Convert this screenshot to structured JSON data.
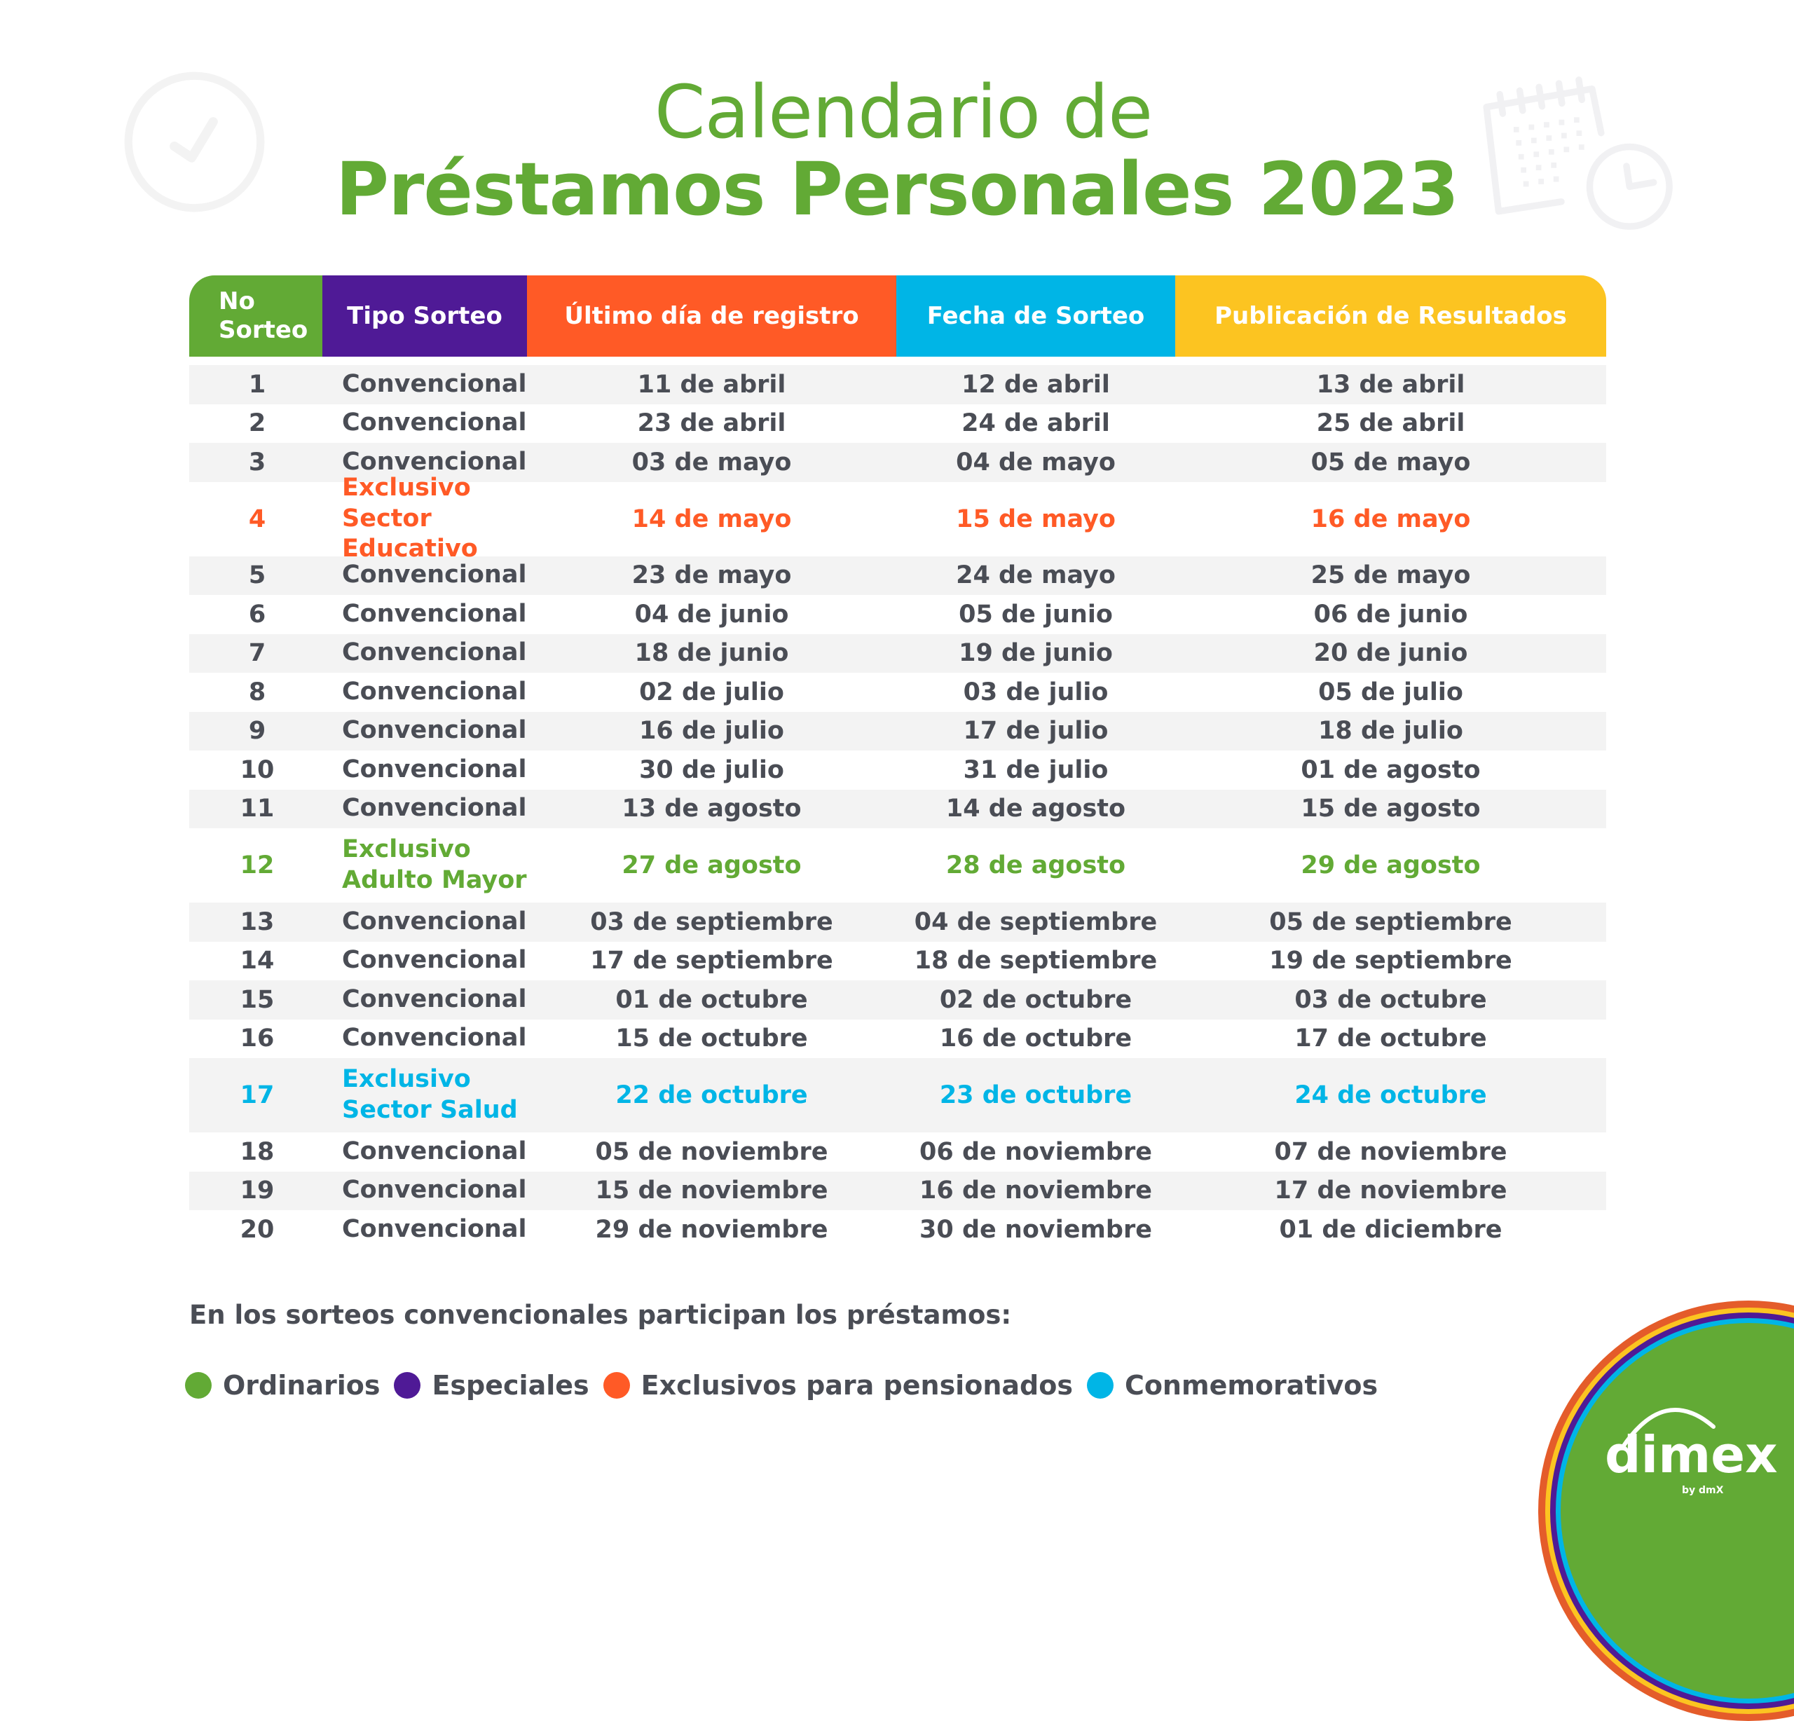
{
  "title": {
    "line1": "Calendario de",
    "line2": "Préstamos Personales 2023"
  },
  "colors": {
    "green": "#62aa35",
    "purple": "#4f1a96",
    "orange": "#ff5a26",
    "blue": "#00b5e6",
    "yellow": "#fcc421",
    "text": "#4a4d55",
    "row_alt": "#f3f3f3"
  },
  "table": {
    "headers": [
      "No Sorteo",
      "Tipo Sorteo",
      "Último día de registro",
      "Fecha de Sorteo",
      "Publicación de Resultados"
    ],
    "header_no_line1": "No",
    "header_no_line2": "Sorteo",
    "rows": [
      {
        "no": "1",
        "tipo": "Convencional",
        "tipo2": "",
        "registro": "11 de abril",
        "sorteo": "12 de abril",
        "publicacion": "13 de abril"
      },
      {
        "no": "2",
        "tipo": "Convencional",
        "tipo2": "",
        "registro": "23 de abril",
        "sorteo": "24 de abril",
        "publicacion": "25 de abril"
      },
      {
        "no": "3",
        "tipo": "Convencional",
        "tipo2": "",
        "registro": "03 de mayo",
        "sorteo": "04 de mayo",
        "publicacion": "05 de mayo"
      },
      {
        "no": "4",
        "tipo": "Exclusivo",
        "tipo2": "Sector Educativo",
        "registro": "14 de mayo",
        "sorteo": "15 de mayo",
        "publicacion": "16 de mayo"
      },
      {
        "no": "5",
        "tipo": "Convencional",
        "tipo2": "",
        "registro": "23 de mayo",
        "sorteo": "24 de mayo",
        "publicacion": "25 de mayo"
      },
      {
        "no": "6",
        "tipo": "Convencional",
        "tipo2": "",
        "registro": "04 de junio",
        "sorteo": "05 de junio",
        "publicacion": "06 de junio"
      },
      {
        "no": "7",
        "tipo": "Convencional",
        "tipo2": "",
        "registro": "18 de junio",
        "sorteo": "19 de junio",
        "publicacion": "20 de junio"
      },
      {
        "no": "8",
        "tipo": "Convencional",
        "tipo2": "",
        "registro": "02 de julio",
        "sorteo": "03 de julio",
        "publicacion": "05 de julio"
      },
      {
        "no": "9",
        "tipo": "Convencional",
        "tipo2": "",
        "registro": "16 de julio",
        "sorteo": "17 de julio",
        "publicacion": "18 de julio"
      },
      {
        "no": "10",
        "tipo": "Convencional",
        "tipo2": "",
        "registro": "30 de julio",
        "sorteo": "31 de julio",
        "publicacion": "01 de agosto"
      },
      {
        "no": "11",
        "tipo": "Convencional",
        "tipo2": "",
        "registro": "13 de agosto",
        "sorteo": "14 de agosto",
        "publicacion": "15 de agosto"
      },
      {
        "no": "12",
        "tipo": "Exclusivo",
        "tipo2": "Adulto Mayor",
        "registro": "27 de agosto",
        "sorteo": "28 de agosto",
        "publicacion": "29 de agosto"
      },
      {
        "no": "13",
        "tipo": "Convencional",
        "tipo2": "",
        "registro": "03 de septiembre",
        "sorteo": "04 de septiembre",
        "publicacion": "05 de septiembre"
      },
      {
        "no": "14",
        "tipo": "Convencional",
        "tipo2": "",
        "registro": "17 de septiembre",
        "sorteo": "18 de septiembre",
        "publicacion": "19 de septiembre"
      },
      {
        "no": "15",
        "tipo": "Convencional",
        "tipo2": "",
        "registro": "01 de octubre",
        "sorteo": "02 de octubre",
        "publicacion": "03 de octubre"
      },
      {
        "no": "16",
        "tipo": "Convencional",
        "tipo2": "",
        "registro": "15 de octubre",
        "sorteo": "16 de octubre",
        "publicacion": "17 de octubre"
      },
      {
        "no": "17",
        "tipo": "Exclusivo",
        "tipo2": "Sector Salud",
        "registro": "22 de octubre",
        "sorteo": "23 de octubre",
        "publicacion": "24 de octubre"
      },
      {
        "no": "18",
        "tipo": "Convencional",
        "tipo2": "",
        "registro": "05 de noviembre",
        "sorteo": "06 de noviembre",
        "publicacion": "07 de noviembre"
      },
      {
        "no": "19",
        "tipo": "Convencional",
        "tipo2": "",
        "registro": "15 de noviembre",
        "sorteo": "16 de noviembre",
        "publicacion": "17 de noviembre"
      },
      {
        "no": "20",
        "tipo": "Convencional",
        "tipo2": "",
        "registro": "29 de noviembre",
        "sorteo": "30 de noviembre",
        "publicacion": "01 de diciembre"
      }
    ]
  },
  "note": "En los sorteos convencionales participan los préstamos:",
  "legend": [
    {
      "label": "Ordinarios",
      "color": "#62aa35"
    },
    {
      "label": "Especiales",
      "color": "#4f1a96"
    },
    {
      "label": "Exclusivos para pensionados",
      "color": "#ff5a26"
    },
    {
      "label": "Conmemorativos",
      "color": "#00b5e6"
    }
  ],
  "logo": {
    "brand": "dimex",
    "sub": "by dmX"
  },
  "icons": [
    "check-circle-icon",
    "calendar-clock-icon"
  ]
}
